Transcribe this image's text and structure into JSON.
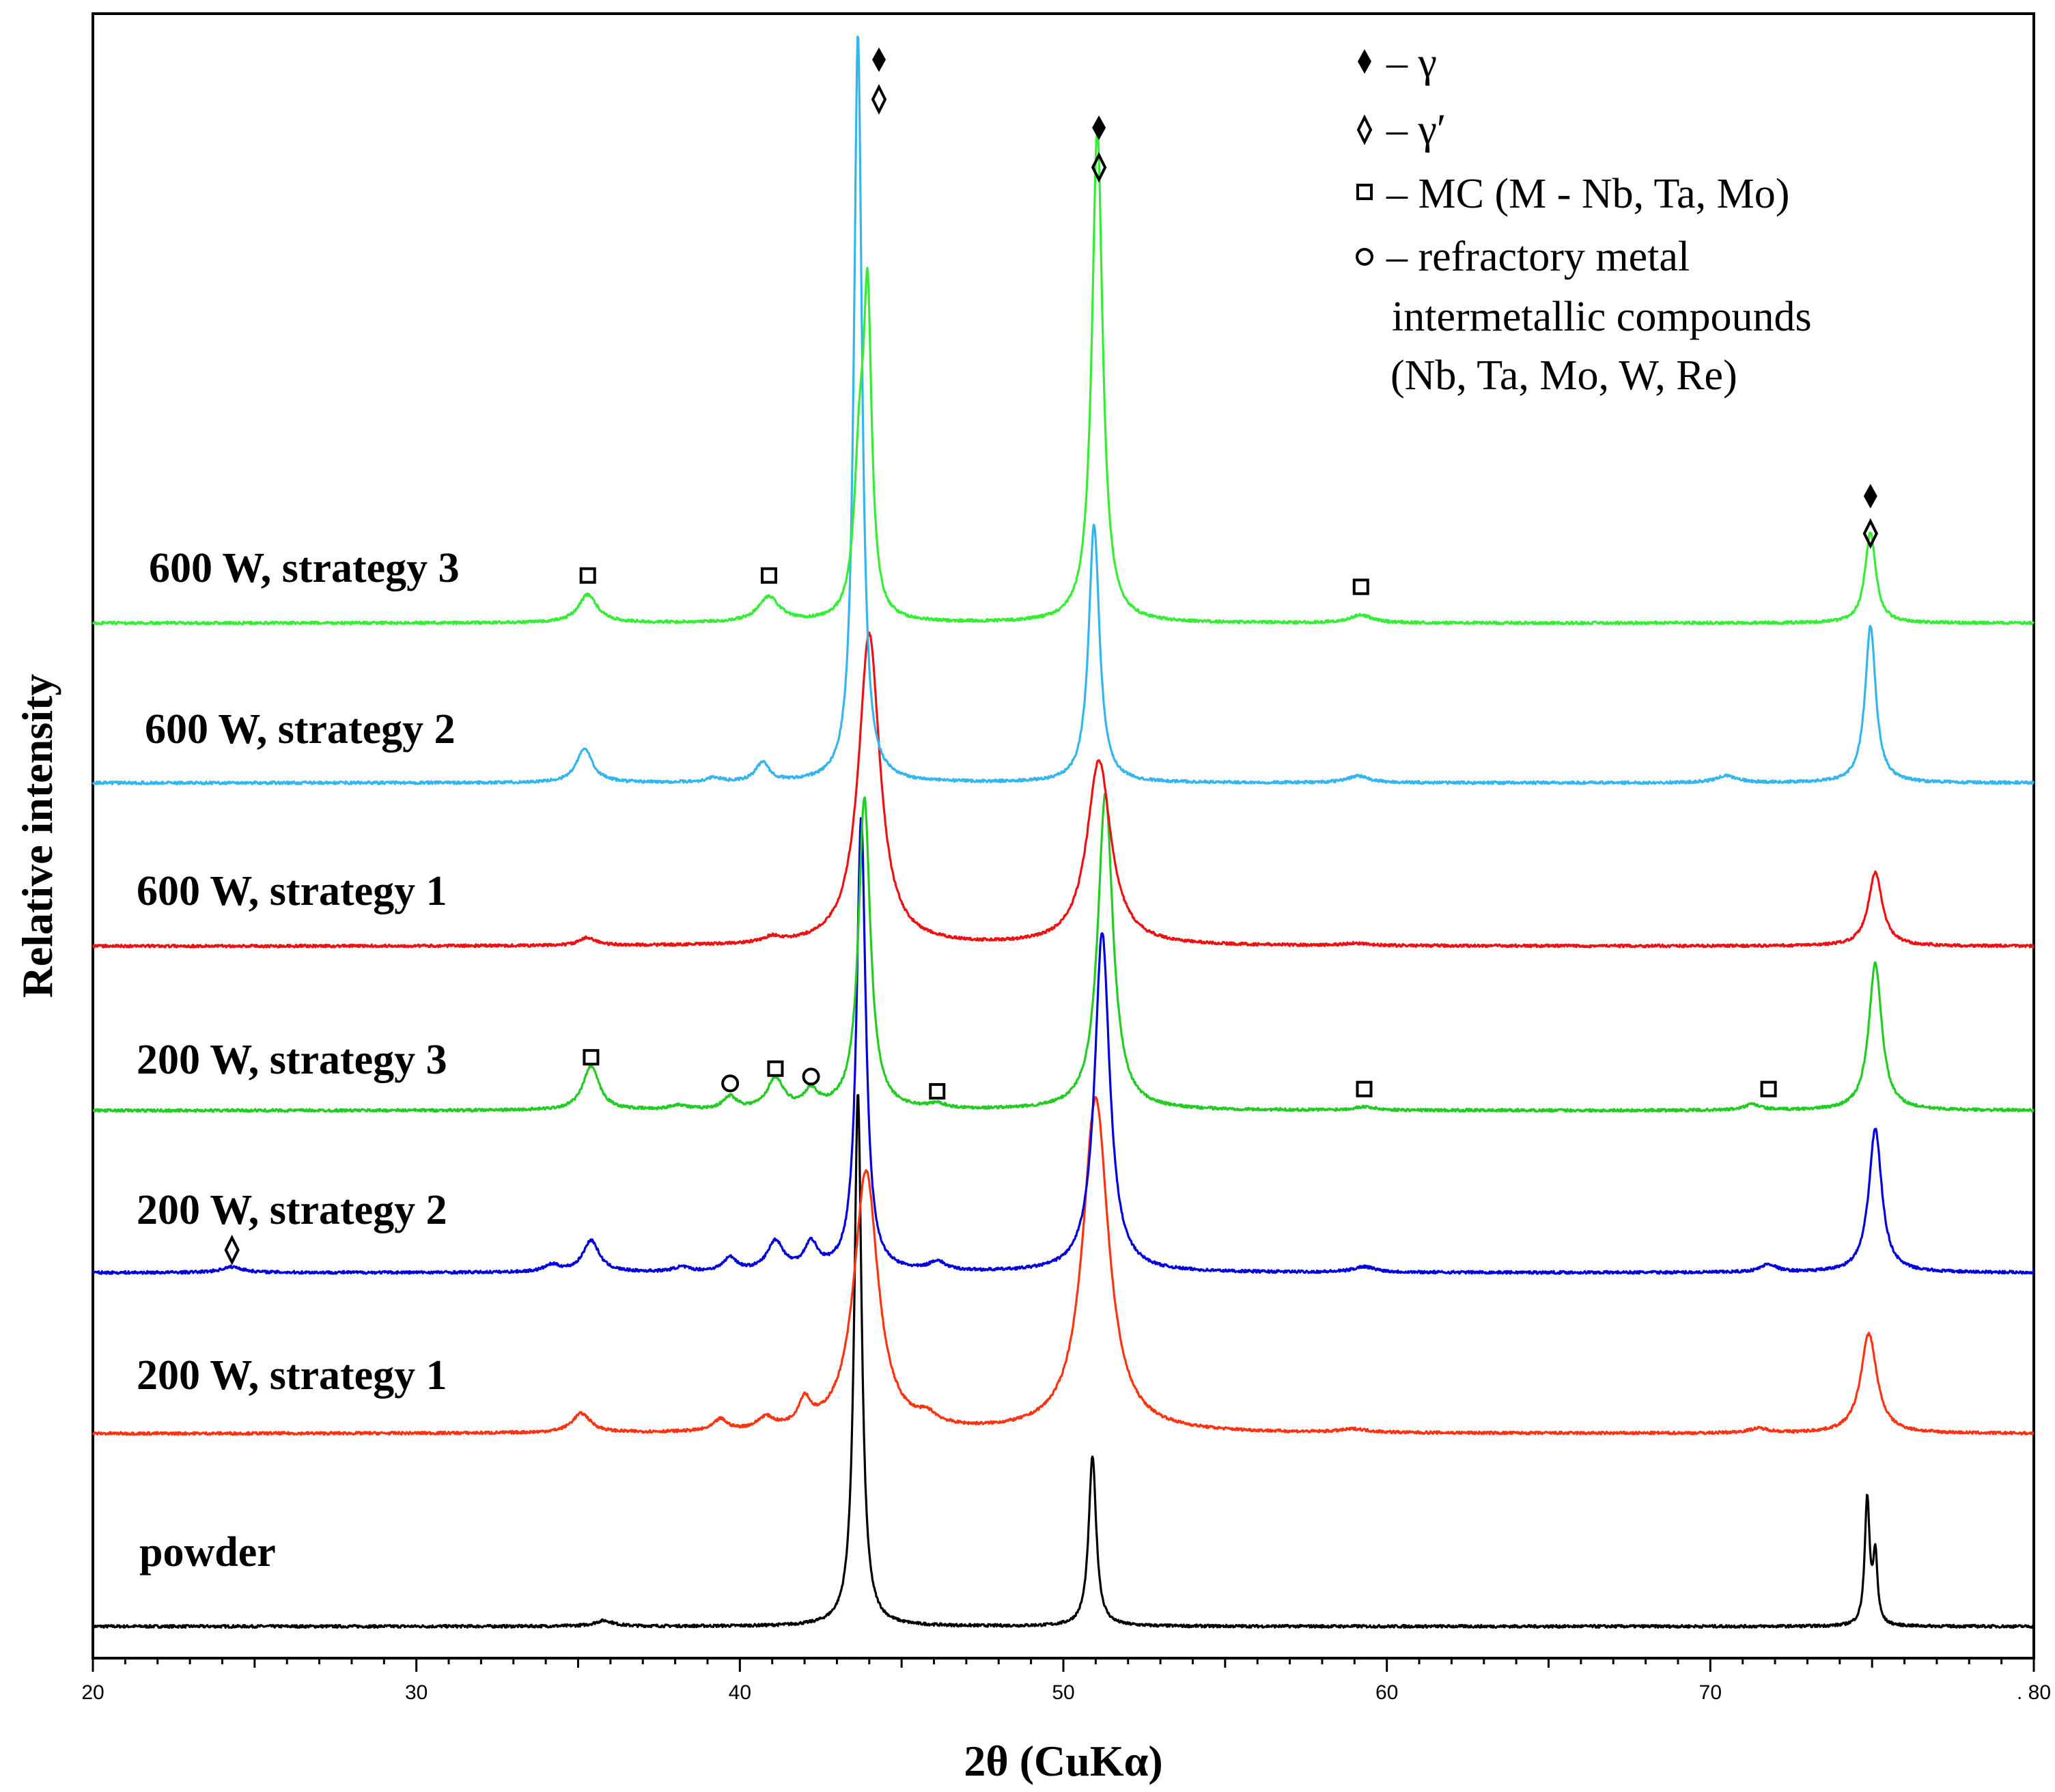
{
  "chart_data": {
    "type": "line",
    "title": "",
    "xlabel": "2θ (CuKα)",
    "ylabel": "Relative intensity",
    "xlim": [
      20,
      80
    ],
    "ylim": [
      0,
      10
    ],
    "x_ticks": [
      20,
      30,
      40,
      50,
      60,
      70,
      80
    ],
    "x_tick_labels": [
      "20",
      "30",
      "40",
      "50",
      "60",
      "70",
      ". 80"
    ],
    "y_ticks_shown": false,
    "grid": false,
    "series": [
      {
        "name": "powder",
        "color": "#000000",
        "baseline": 0.28,
        "noise": 0.012,
        "peaks": [
          {
            "x": 35.8,
            "h": 0.05,
            "w": 0.35
          },
          {
            "x": 43.65,
            "h": 4.7,
            "w": 0.14
          },
          {
            "x": 50.9,
            "h": 1.5,
            "w": 0.14
          },
          {
            "x": 74.85,
            "h": 1.12,
            "w": 0.09
          },
          {
            "x": 75.1,
            "h": 0.6,
            "w": 0.08
          }
        ]
      },
      {
        "name": "200 W, strategy 1",
        "color": "#ff3311",
        "baseline": 1.98,
        "noise": 0.012,
        "peaks": [
          {
            "x": 35.1,
            "h": 0.17,
            "w": 0.35
          },
          {
            "x": 39.4,
            "h": 0.1,
            "w": 0.25
          },
          {
            "x": 40.8,
            "h": 0.1,
            "w": 0.3
          },
          {
            "x": 42.0,
            "h": 0.22,
            "w": 0.22
          },
          {
            "x": 43.9,
            "h": 2.3,
            "w": 0.45
          },
          {
            "x": 45.8,
            "h": 0.08,
            "w": 0.35
          },
          {
            "x": 51.0,
            "h": 2.95,
            "w": 0.48
          },
          {
            "x": 59.0,
            "h": 0.03,
            "w": 0.5
          },
          {
            "x": 71.5,
            "h": 0.04,
            "w": 0.4
          },
          {
            "x": 74.9,
            "h": 0.88,
            "w": 0.3
          }
        ]
      },
      {
        "name": "200 W, strategy 2",
        "color": "#0000dd",
        "baseline": 3.4,
        "noise": 0.012,
        "peaks": [
          {
            "x": 24.3,
            "h": 0.05,
            "w": 0.4
          },
          {
            "x": 34.2,
            "h": 0.06,
            "w": 0.3
          },
          {
            "x": 35.4,
            "h": 0.28,
            "w": 0.3
          },
          {
            "x": 38.2,
            "h": 0.04,
            "w": 0.3
          },
          {
            "x": 39.7,
            "h": 0.12,
            "w": 0.25
          },
          {
            "x": 41.1,
            "h": 0.26,
            "w": 0.3
          },
          {
            "x": 42.2,
            "h": 0.23,
            "w": 0.25
          },
          {
            "x": 43.75,
            "h": 4.0,
            "w": 0.17
          },
          {
            "x": 46.1,
            "h": 0.08,
            "w": 0.3
          },
          {
            "x": 51.2,
            "h": 3.0,
            "w": 0.28
          },
          {
            "x": 59.3,
            "h": 0.05,
            "w": 0.4
          },
          {
            "x": 71.8,
            "h": 0.07,
            "w": 0.3
          },
          {
            "x": 75.1,
            "h": 1.27,
            "w": 0.24
          }
        ]
      },
      {
        "name": "200 W, strategy 3",
        "color": "#22cc22",
        "baseline": 4.83,
        "noise": 0.012,
        "peaks": [
          {
            "x": 35.4,
            "h": 0.39,
            "w": 0.3
          },
          {
            "x": 38.1,
            "h": 0.04,
            "w": 0.3
          },
          {
            "x": 39.7,
            "h": 0.11,
            "w": 0.25
          },
          {
            "x": 41.1,
            "h": 0.27,
            "w": 0.3
          },
          {
            "x": 42.2,
            "h": 0.15,
            "w": 0.25
          },
          {
            "x": 43.85,
            "h": 2.75,
            "w": 0.22
          },
          {
            "x": 46.1,
            "h": 0.04,
            "w": 0.3
          },
          {
            "x": 51.3,
            "h": 2.8,
            "w": 0.28
          },
          {
            "x": 59.3,
            "h": 0.03,
            "w": 0.4
          },
          {
            "x": 71.3,
            "h": 0.05,
            "w": 0.3
          },
          {
            "x": 75.1,
            "h": 1.3,
            "w": 0.24
          }
        ]
      },
      {
        "name": "600 W, strategy 1",
        "color": "#ee1111",
        "baseline": 6.28,
        "noise": 0.012,
        "peaks": [
          {
            "x": 35.3,
            "h": 0.07,
            "w": 0.3
          },
          {
            "x": 41.0,
            "h": 0.05,
            "w": 0.3
          },
          {
            "x": 44.0,
            "h": 2.75,
            "w": 0.4
          },
          {
            "x": 51.1,
            "h": 1.63,
            "w": 0.45
          },
          {
            "x": 59.0,
            "h": 0.02,
            "w": 0.4
          },
          {
            "x": 75.1,
            "h": 0.65,
            "w": 0.26
          }
        ]
      },
      {
        "name": "600 W, strategy 2",
        "color": "#33b5ee",
        "baseline": 7.72,
        "noise": 0.012,
        "peaks": [
          {
            "x": 35.2,
            "h": 0.3,
            "w": 0.3
          },
          {
            "x": 39.2,
            "h": 0.04,
            "w": 0.25
          },
          {
            "x": 40.7,
            "h": 0.17,
            "w": 0.25
          },
          {
            "x": 43.65,
            "h": 6.6,
            "w": 0.15
          },
          {
            "x": 50.95,
            "h": 2.28,
            "w": 0.2
          },
          {
            "x": 59.1,
            "h": 0.06,
            "w": 0.4
          },
          {
            "x": 70.5,
            "h": 0.06,
            "w": 0.4
          },
          {
            "x": 74.95,
            "h": 1.38,
            "w": 0.2
          }
        ]
      },
      {
        "name": "600 W, strategy 3",
        "color": "#33ee33",
        "baseline": 9.13,
        "noise": 0.012,
        "peaks": [
          {
            "x": 35.3,
            "h": 0.25,
            "w": 0.35
          },
          {
            "x": 40.9,
            "h": 0.22,
            "w": 0.4
          },
          {
            "x": 43.7,
            "h": 1.3,
            "w": 0.2
          },
          {
            "x": 43.95,
            "h": 2.6,
            "w": 0.15
          },
          {
            "x": 51.05,
            "h": 4.35,
            "w": 0.2
          },
          {
            "x": 59.2,
            "h": 0.07,
            "w": 0.4
          },
          {
            "x": 74.95,
            "h": 0.8,
            "w": 0.2
          }
        ]
      }
    ],
    "annotations": [
      {
        "symbol": "square",
        "x": 35.3,
        "y": 9.55
      },
      {
        "symbol": "square",
        "x": 40.9,
        "y": 9.55
      },
      {
        "symbol": "square",
        "x": 59.2,
        "y": 9.45
      },
      {
        "symbol": "filled-diamond",
        "x": 44.3,
        "y": 14.1
      },
      {
        "symbol": "open-diamond",
        "x": 44.3,
        "y": 13.75
      },
      {
        "symbol": "filled-diamond",
        "x": 51.1,
        "y": 13.5
      },
      {
        "symbol": "open-diamond",
        "x": 51.1,
        "y": 13.15
      },
      {
        "symbol": "filled-diamond",
        "x": 74.95,
        "y": 10.25
      },
      {
        "symbol": "open-diamond",
        "x": 74.95,
        "y": 9.92
      },
      {
        "symbol": "square",
        "x": 35.4,
        "y": 5.3
      },
      {
        "symbol": "circle",
        "x": 39.7,
        "y": 5.07
      },
      {
        "symbol": "square",
        "x": 41.1,
        "y": 5.2
      },
      {
        "symbol": "circle",
        "x": 42.2,
        "y": 5.13
      },
      {
        "symbol": "square",
        "x": 46.1,
        "y": 5.0
      },
      {
        "symbol": "square",
        "x": 59.3,
        "y": 5.02
      },
      {
        "symbol": "square",
        "x": 71.8,
        "y": 5.02
      },
      {
        "symbol": "open-diamond",
        "x": 24.3,
        "y": 3.6
      }
    ],
    "legend": {
      "placement": "top-right",
      "entries": [
        {
          "symbol": "filled-diamond",
          "text": "– γ"
        },
        {
          "symbol": "open-diamond",
          "text": "– γ′"
        },
        {
          "symbol": "square",
          "text": "– MC (M - Nb, Ta, Mo)"
        },
        {
          "symbol": "circle",
          "text": "– refractory metal",
          "extra": [
            "intermetallic compounds",
            "(Nb, Ta, Mo, W, Re)"
          ]
        }
      ]
    }
  }
}
